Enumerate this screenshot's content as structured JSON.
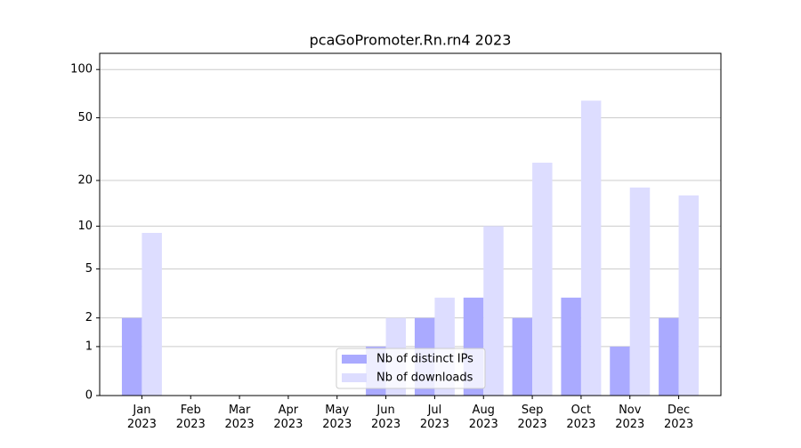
{
  "chart_data": {
    "type": "bar",
    "title": "pcaGoPromoter.Rn.rn4 2023",
    "categories": [
      "Jan 2023",
      "Feb 2023",
      "Mar 2023",
      "Apr 2023",
      "May 2023",
      "Jun 2023",
      "Jul 2023",
      "Aug 2023",
      "Sep 2023",
      "Oct 2023",
      "Nov 2023",
      "Dec 2023"
    ],
    "series": [
      {
        "name": "Nb of distinct IPs",
        "color": "#aaaaff",
        "values": [
          2,
          0,
          0,
          0,
          0,
          1,
          2,
          3,
          2,
          3,
          1,
          2
        ]
      },
      {
        "name": "Nb of downloads",
        "color": "#ddddff",
        "values": [
          9,
          0,
          0,
          0,
          0,
          2,
          3,
          10,
          26,
          64,
          18,
          16
        ]
      }
    ],
    "yscale": "log1p",
    "ylim": [
      0,
      126
    ],
    "yticks": [
      0,
      1,
      2,
      5,
      10,
      20,
      50,
      100
    ],
    "grid": true,
    "legend": "lower center"
  }
}
